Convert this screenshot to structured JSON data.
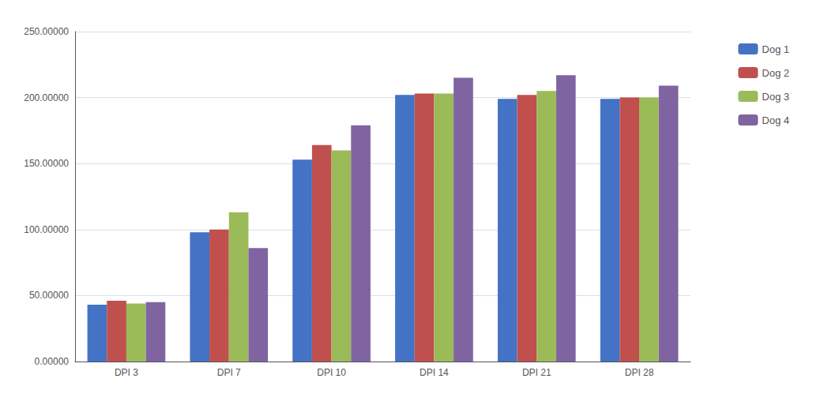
{
  "chart_data": {
    "type": "bar",
    "categories": [
      "DPI 3",
      "DPI 7",
      "DPI 10",
      "DPI 14",
      "DPI 21",
      "DPI 28"
    ],
    "series": [
      {
        "name": "Dog 1",
        "color": "#4472C4",
        "values": [
          43,
          98,
          153,
          202,
          199,
          199
        ]
      },
      {
        "name": "Dog 2",
        "color": "#C0504D",
        "values": [
          46,
          100,
          164,
          203,
          202,
          200
        ]
      },
      {
        "name": "Dog 3",
        "color": "#9BBB59",
        "values": [
          44,
          113,
          160,
          203,
          205,
          200
        ]
      },
      {
        "name": "Dog 4",
        "color": "#8064A2",
        "values": [
          45,
          86,
          179,
          215,
          217,
          209
        ]
      }
    ],
    "ylim": [
      0,
      250
    ],
    "yticks": [
      {
        "value": 0,
        "label": "0.00000"
      },
      {
        "value": 50,
        "label": "50.00000"
      },
      {
        "value": 100,
        "label": "100.00000"
      },
      {
        "value": 150,
        "label": "150.00000"
      },
      {
        "value": 200,
        "label": "200.00000"
      },
      {
        "value": 250,
        "label": "250.00000"
      }
    ],
    "grid": true,
    "legend": "upper right"
  }
}
